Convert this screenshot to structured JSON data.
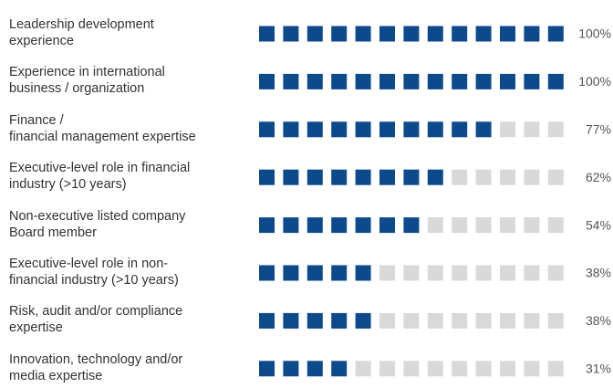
{
  "chart_data": {
    "type": "waffle-bar",
    "categories": [
      "Leadership development\nexperience",
      "Experience in international\nbusiness / organization",
      "Finance /\nfinancial management expertise",
      "Executive-level role in financial\nindustry (>10 years)",
      "Non-executive listed company\nBoard member",
      "Executive-level role in non-\nfinancial industry (>10 years)",
      "Risk, audit and/or compliance\nexpertise",
      "Innovation, technology and/or\nmedia expertise"
    ],
    "values": [
      100,
      100,
      77,
      62,
      54,
      38,
      38,
      31
    ],
    "value_labels": [
      "100%",
      "100%",
      "77%",
      "62%",
      "54%",
      "38%",
      "38%",
      "31%"
    ],
    "xlim": [
      0,
      100
    ],
    "color": "#0d4a8b",
    "empty_color": "#d9d9d9"
  }
}
